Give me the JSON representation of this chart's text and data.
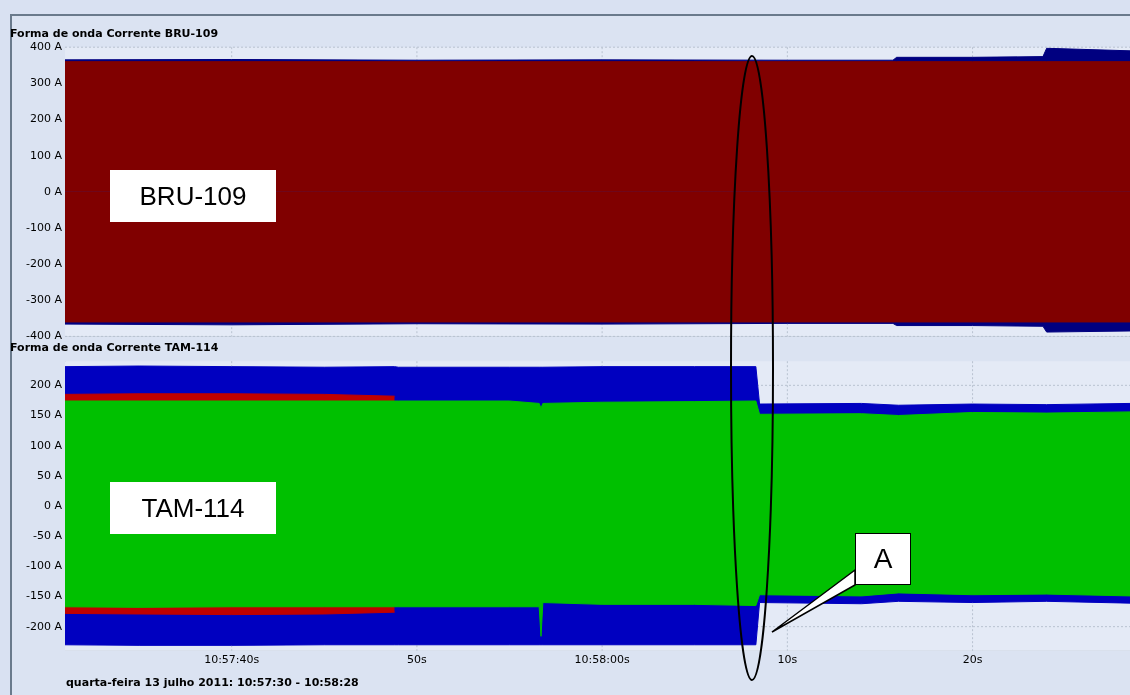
{
  "chart_data": [
    {
      "type": "area",
      "title": "Forma de onda Corrente BRU-109",
      "x": [
        "2011-07-13T10:57:31",
        "2011-07-13T10:57:40",
        "2011-07-13T10:57:50",
        "2011-07-13T10:58:00",
        "2011-07-13T10:58:10",
        "2011-07-13T10:58:15.7",
        "2011-07-13T10:58:15.9",
        "2011-07-13T10:58:20",
        "2011-07-13T10:58:23.8",
        "2011-07-13T10:58:24",
        "2011-07-13T10:58:28.5"
      ],
      "series": [
        {
          "color": "#000080",
          "values": [
            365,
            366,
            364,
            365,
            364,
            364,
            372,
            372,
            374,
            397,
            390
          ]
        },
        {
          "color": "#000080",
          "values": [
            -366,
            -368,
            -365,
            -366,
            -364,
            -364,
            -370,
            -370,
            -372,
            -388,
            -385
          ]
        },
        {
          "color": "#800000",
          "values": [
            360,
            360,
            360,
            360,
            360,
            360,
            360,
            360,
            360,
            360,
            360
          ]
        },
        {
          "color": "#800000",
          "values": [
            -360,
            -360,
            -360,
            -360,
            -360,
            -360,
            -360,
            -360,
            -360,
            -360,
            -360
          ]
        }
      ],
      "xlim": [
        "2011-07-13T10:57:31",
        "2011-07-13T10:58:28.5"
      ],
      "xticks": [
        "2011-07-13T10:57:40",
        "2011-07-13T10:57:50",
        "2011-07-13T10:58:00",
        "2011-07-13T10:58:10",
        "2011-07-13T10:58:20"
      ],
      "ylim": [
        -400,
        400
      ],
      "yticks": [
        {
          "value": -400,
          "label": "-400 A"
        },
        {
          "value": -300,
          "label": "-300 A"
        },
        {
          "value": -200,
          "label": "-200 A"
        },
        {
          "value": -100,
          "label": "-100 A"
        },
        {
          "value": 0,
          "label": "0 A"
        },
        {
          "value": 100,
          "label": "100 A"
        },
        {
          "value": 200,
          "label": "200 A"
        },
        {
          "value": 300,
          "label": "300 A"
        },
        {
          "value": 400,
          "label": "400 A"
        }
      ],
      "tick_labels": "y",
      "grid": true,
      "marker": "none",
      "annotations": [
        "BRU-109"
      ]
    },
    {
      "type": "area",
      "title": "Forma de onda Corrente TAM-114",
      "x": [
        "2011-07-13T10:57:31",
        "2011-07-13T10:57:35",
        "2011-07-13T10:57:40",
        "2011-07-13T10:57:45",
        "2011-07-13T10:57:48.8",
        "2011-07-13T10:57:49",
        "2011-07-13T10:57:55",
        "2011-07-13T10:57:56.6",
        "2011-07-13T10:57:56.7",
        "2011-07-13T10:57:56.8",
        "2011-07-13T10:58:00",
        "2011-07-13T10:58:05",
        "2011-07-13T10:58:08.3",
        "2011-07-13T10:58:08.5",
        "2011-07-13T10:58:14",
        "2011-07-13T10:58:16",
        "2011-07-13T10:58:20",
        "2011-07-13T10:58:24",
        "2011-07-13T10:58:28.5"
      ],
      "series": [
        {
          "color": "#0000c0",
          "values": [
            231,
            232,
            231,
            230,
            231,
            230,
            230,
            230,
            230,
            230,
            231,
            231,
            231,
            169,
            170,
            167,
            169,
            168,
            170
          ]
        },
        {
          "color": "#0000c0",
          "values": [
            -230,
            -231,
            -231,
            -230,
            -230,
            -230,
            -230,
            -230,
            -230,
            -230,
            -230,
            -230,
            -230,
            -160,
            -162,
            -158,
            -160,
            -158,
            -161
          ]
        },
        {
          "color": "#c00000",
          "values": [
            185,
            186,
            186,
            185,
            182,
            null,
            null,
            null,
            null,
            null,
            null,
            null,
            null,
            null,
            null,
            null,
            null,
            null,
            null
          ]
        },
        {
          "color": "#c00000",
          "values": [
            -178,
            -179,
            -180,
            -179,
            -176,
            null,
            null,
            null,
            null,
            null,
            null,
            null,
            null,
            null,
            null,
            null,
            null,
            null,
            null
          ]
        },
        {
          "color": "#00c000",
          "values": [
            174,
            174,
            174,
            174,
            174,
            174,
            174,
            170,
            162,
            170,
            172,
            173,
            174,
            152,
            153,
            150,
            155,
            154,
            156
          ]
        },
        {
          "color": "#00c000",
          "values": [
            -167,
            -168,
            -167,
            -167,
            -167,
            -167,
            -167,
            -167,
            -216,
            -160,
            -163,
            -163,
            -165,
            -147,
            -149,
            -144,
            -147,
            -146,
            -149
          ]
        }
      ],
      "xlim": [
        "2011-07-13T10:57:31",
        "2011-07-13T10:58:28.5"
      ],
      "xticks": [
        {
          "value": "2011-07-13T10:57:40",
          "label": "10:57:40s"
        },
        {
          "value": "2011-07-13T10:57:50",
          "label": "50s"
        },
        {
          "value": "2011-07-13T10:58:00",
          "label": "10:58:00s"
        },
        {
          "value": "2011-07-13T10:58:10",
          "label": "10s"
        },
        {
          "value": "2011-07-13T10:58:20",
          "label": "20s"
        }
      ],
      "ylim": [
        -240,
        240
      ],
      "yticks": [
        {
          "value": -200,
          "label": "-200 A"
        },
        {
          "value": -150,
          "label": "-150 A"
        },
        {
          "value": -100,
          "label": "-100 A"
        },
        {
          "value": -50,
          "label": "-50 A"
        },
        {
          "value": 0,
          "label": "0 A"
        },
        {
          "value": 50,
          "label": "50 A"
        },
        {
          "value": 100,
          "label": "100 A"
        },
        {
          "value": 150,
          "label": "150 A"
        },
        {
          "value": 200,
          "label": "200 A"
        }
      ],
      "grid": true,
      "marker": "none",
      "annotations": [
        "TAM-114",
        "A",
        "quarta-feira 13 julho 2011: 10:57:30 - 10:58:28"
      ]
    }
  ]
}
